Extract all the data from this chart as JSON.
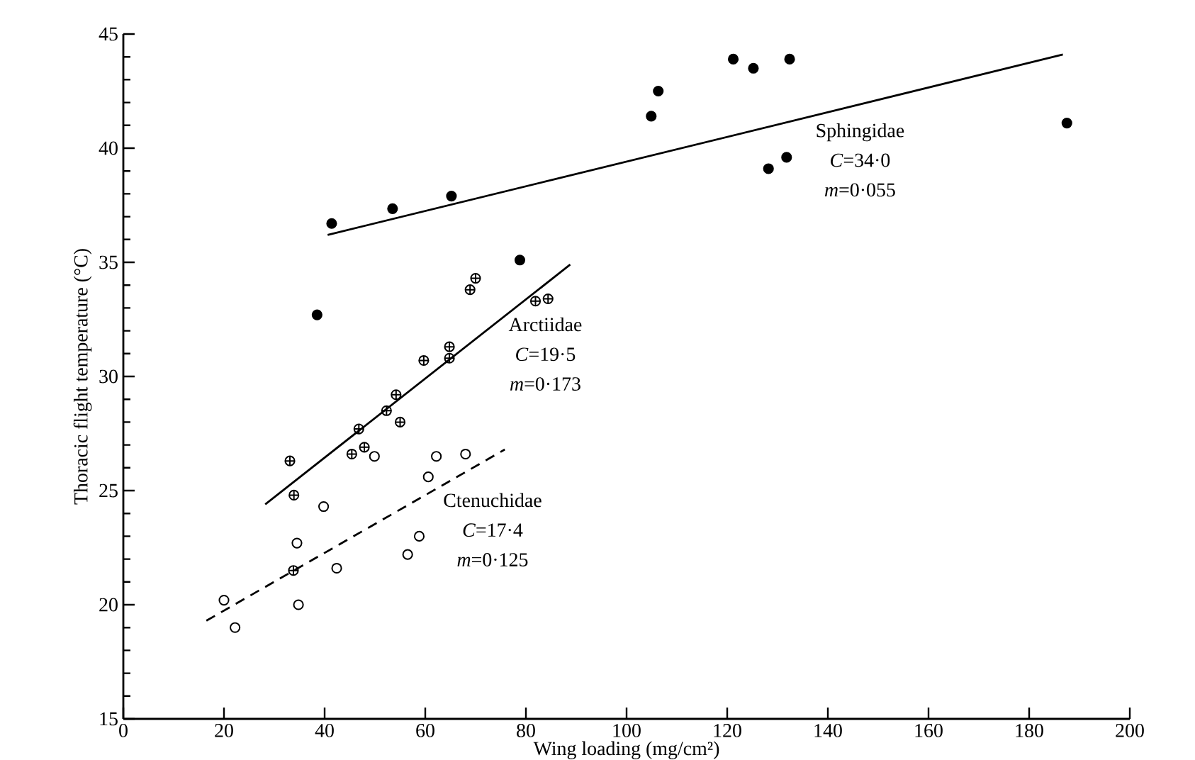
{
  "chart_data": {
    "type": "scatter",
    "xlabel": "Wing loading (mg/cm²)",
    "ylabel": "Thoracic flight temperature (°C)",
    "xlim": [
      0,
      200
    ],
    "ylim": [
      15,
      45
    ],
    "xticks": [
      0,
      20,
      40,
      60,
      80,
      100,
      120,
      140,
      160,
      180,
      200
    ],
    "yticks": [
      15,
      20,
      25,
      30,
      35,
      40,
      45
    ],
    "grid": false,
    "series": [
      {
        "marker": "circle",
        "color": "#000000",
        "x": [
          41.4,
          53.5,
          65.2,
          104.9,
          106.3,
          121.2,
          125.2,
          132.4,
          128.2,
          131.8,
          187.5,
          38.5,
          78.8
        ],
        "values": [
          36.7,
          37.35,
          37.9,
          41.4,
          42.5,
          43.9,
          43.5,
          43.9,
          39.1,
          39.6,
          41.1,
          32.7,
          35.1
        ]
      },
      {
        "marker": "cross",
        "color": "#000000",
        "x": [
          33.1,
          33.9,
          33.8,
          45.4,
          46.8,
          47.9,
          52.3,
          54.2,
          55.0,
          59.7,
          64.8,
          64.8,
          68.9,
          70.0,
          81.9,
          84.4
        ],
        "values": [
          26.3,
          24.8,
          21.5,
          26.6,
          27.7,
          26.9,
          28.5,
          29.2,
          28.0,
          30.7,
          31.3,
          30.8,
          33.8,
          34.3,
          33.3,
          33.4
        ]
      },
      {
        "marker": "open circle",
        "color": "#000000",
        "x": [
          20.0,
          22.2,
          34.5,
          34.8,
          39.8,
          42.4,
          49.9,
          56.5,
          58.8,
          60.6,
          62.2,
          68.0
        ],
        "values": [
          20.2,
          19.0,
          22.7,
          20.0,
          24.3,
          21.6,
          26.5,
          22.2,
          23.0,
          25.6,
          26.5,
          26.6
        ]
      },
      {
        "type": "line",
        "line_style": "solid",
        "color": "#000000",
        "x": [
          40.6,
          186.7
        ],
        "values": [
          36.2,
          44.1
        ]
      },
      {
        "type": "line",
        "line_style": "solid",
        "color": "#000000",
        "x": [
          28.2,
          88.8
        ],
        "values": [
          24.4,
          34.9
        ]
      },
      {
        "type": "line",
        "line_style": "dashed",
        "color": "#000000",
        "x": [
          16.5,
          75.8
        ],
        "values": [
          19.3,
          26.8
        ]
      }
    ],
    "annotations": [
      "Sphingidae",
      "*C*=34·0",
      "*m*=0·055",
      "Arctiidae",
      "*C*=19·5",
      "*m*=0·173",
      "Ctenuchidae",
      "*C*=17·4",
      "*m*=0·125"
    ]
  }
}
